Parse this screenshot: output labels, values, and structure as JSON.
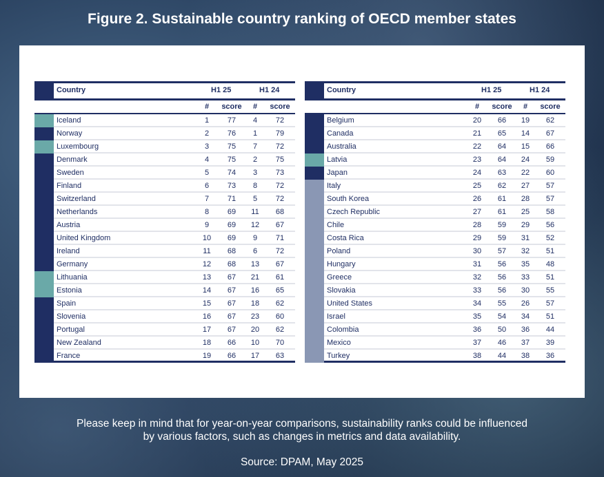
{
  "title": "Figure 2. Sustainable country ranking of OECD member states",
  "colors": {
    "navy": "#1f2e63",
    "teal": "#6aa9a8",
    "greyblue": "#8a97b4"
  },
  "headers": {
    "country": "Country",
    "period1": "H1 25",
    "period2": "H1 24",
    "rank": "#",
    "score": "score"
  },
  "tables": [
    {
      "rows": [
        {
          "country": "Iceland",
          "r25": 1,
          "s25": 77,
          "r24": 4,
          "s24": 72,
          "band": "teal"
        },
        {
          "country": "Norway",
          "r25": 2,
          "s25": 76,
          "r24": 1,
          "s24": 79,
          "band": "navy"
        },
        {
          "country": "Luxembourg",
          "r25": 3,
          "s25": 75,
          "r24": 7,
          "s24": 72,
          "band": "teal"
        },
        {
          "country": "Denmark",
          "r25": 4,
          "s25": 75,
          "r24": 2,
          "s24": 75,
          "band": "navy"
        },
        {
          "country": "Sweden",
          "r25": 5,
          "s25": 74,
          "r24": 3,
          "s24": 73,
          "band": "navy"
        },
        {
          "country": "Finland",
          "r25": 6,
          "s25": 73,
          "r24": 8,
          "s24": 72,
          "band": "navy"
        },
        {
          "country": "Switzerland",
          "r25": 7,
          "s25": 71,
          "r24": 5,
          "s24": 72,
          "band": "navy"
        },
        {
          "country": "Netherlands",
          "r25": 8,
          "s25": 69,
          "r24": 11,
          "s24": 68,
          "band": "navy"
        },
        {
          "country": "Austria",
          "r25": 9,
          "s25": 69,
          "r24": 12,
          "s24": 67,
          "band": "navy"
        },
        {
          "country": "United Kingdom",
          "r25": 10,
          "s25": 69,
          "r24": 9,
          "s24": 71,
          "band": "navy"
        },
        {
          "country": "Ireland",
          "r25": 11,
          "s25": 68,
          "r24": 6,
          "s24": 72,
          "band": "navy"
        },
        {
          "country": "Germany",
          "r25": 12,
          "s25": 68,
          "r24": 13,
          "s24": 67,
          "band": "navy"
        },
        {
          "country": "Lithuania",
          "r25": 13,
          "s25": 67,
          "r24": 21,
          "s24": 61,
          "band": "teal"
        },
        {
          "country": "Estonia",
          "r25": 14,
          "s25": 67,
          "r24": 16,
          "s24": 65,
          "band": "teal"
        },
        {
          "country": "Spain",
          "r25": 15,
          "s25": 67,
          "r24": 18,
          "s24": 62,
          "band": "navy"
        },
        {
          "country": "Slovenia",
          "r25": 16,
          "s25": 67,
          "r24": 23,
          "s24": 60,
          "band": "navy"
        },
        {
          "country": "Portugal",
          "r25": 17,
          "s25": 67,
          "r24": 20,
          "s24": 62,
          "band": "navy"
        },
        {
          "country": "New Zealand",
          "r25": 18,
          "s25": 66,
          "r24": 10,
          "s24": 70,
          "band": "navy"
        },
        {
          "country": "France",
          "r25": 19,
          "s25": 66,
          "r24": 17,
          "s24": 63,
          "band": "navy"
        }
      ]
    },
    {
      "rows": [
        {
          "country": "Belgium",
          "r25": 20,
          "s25": 66,
          "r24": 19,
          "s24": 62,
          "band": "navy"
        },
        {
          "country": "Canada",
          "r25": 21,
          "s25": 65,
          "r24": 14,
          "s24": 67,
          "band": "navy"
        },
        {
          "country": "Australia",
          "r25": 22,
          "s25": 64,
          "r24": 15,
          "s24": 66,
          "band": "navy"
        },
        {
          "country": "Latvia",
          "r25": 23,
          "s25": 64,
          "r24": 24,
          "s24": 59,
          "band": "teal"
        },
        {
          "country": "Japan",
          "r25": 24,
          "s25": 63,
          "r24": 22,
          "s24": 60,
          "band": "navy"
        },
        {
          "country": "Italy",
          "r25": 25,
          "s25": 62,
          "r24": 27,
          "s24": 57,
          "band": "greyblue"
        },
        {
          "country": "South Korea",
          "r25": 26,
          "s25": 61,
          "r24": 28,
          "s24": 57,
          "band": "greyblue"
        },
        {
          "country": "Czech Republic",
          "r25": 27,
          "s25": 61,
          "r24": 25,
          "s24": 58,
          "band": "greyblue"
        },
        {
          "country": "Chile",
          "r25": 28,
          "s25": 59,
          "r24": 29,
          "s24": 56,
          "band": "greyblue"
        },
        {
          "country": "Costa Rica",
          "r25": 29,
          "s25": 59,
          "r24": 31,
          "s24": 52,
          "band": "greyblue"
        },
        {
          "country": "Poland",
          "r25": 30,
          "s25": 57,
          "r24": 32,
          "s24": 51,
          "band": "greyblue"
        },
        {
          "country": "Hungary",
          "r25": 31,
          "s25": 56,
          "r24": 35,
          "s24": 48,
          "band": "greyblue"
        },
        {
          "country": "Greece",
          "r25": 32,
          "s25": 56,
          "r24": 33,
          "s24": 51,
          "band": "greyblue"
        },
        {
          "country": "Slovakia",
          "r25": 33,
          "s25": 56,
          "r24": 30,
          "s24": 55,
          "band": "greyblue"
        },
        {
          "country": "United States",
          "r25": 34,
          "s25": 55,
          "r24": 26,
          "s24": 57,
          "band": "greyblue"
        },
        {
          "country": "Israel",
          "r25": 35,
          "s25": 54,
          "r24": 34,
          "s24": 51,
          "band": "greyblue"
        },
        {
          "country": "Colombia",
          "r25": 36,
          "s25": 50,
          "r24": 36,
          "s24": 44,
          "band": "greyblue"
        },
        {
          "country": "Mexico",
          "r25": 37,
          "s25": 46,
          "r24": 37,
          "s24": 39,
          "band": "greyblue"
        },
        {
          "country": "Turkey",
          "r25": 38,
          "s25": 44,
          "r24": 38,
          "s24": 36,
          "band": "greyblue"
        }
      ]
    }
  ],
  "footnote_line1": "Please keep in mind that for year-on-year comparisons, sustainability ranks could be influenced",
  "footnote_line2": "by various factors, such as changes in metrics and data availability.",
  "source": "Source: DPAM, May 2025"
}
